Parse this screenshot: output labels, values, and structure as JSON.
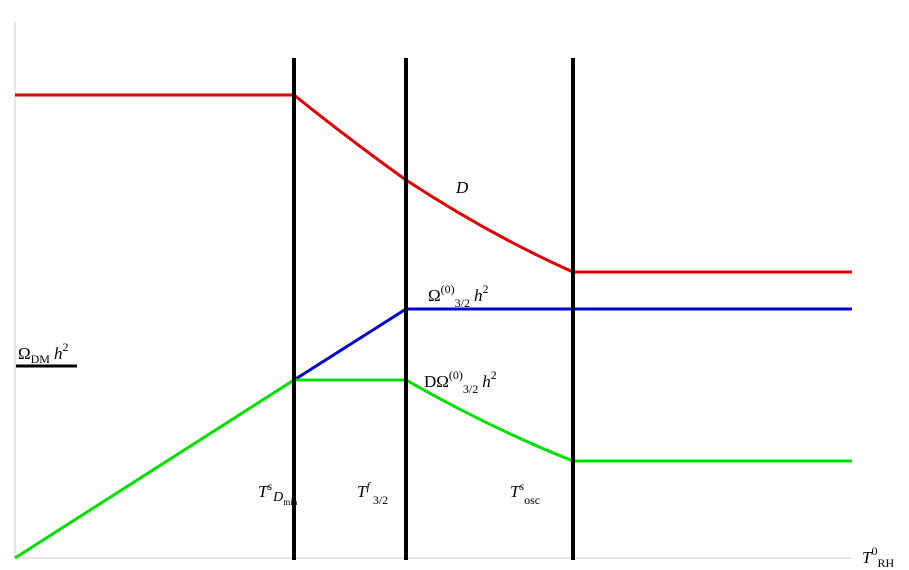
{
  "labels": {
    "y_axis": [
      "Ω",
      "DM",
      "h",
      "2"
    ],
    "curve_d": [
      "D"
    ],
    "omega_32": [
      "Ω",
      "(0)",
      "3/2",
      "h",
      "2"
    ],
    "d_omega_32": [
      "DΩ",
      "(0)",
      "3/2",
      "h",
      "2"
    ],
    "t_dmin": [
      "T",
      "s",
      "D",
      "min"
    ],
    "t_f32": [
      "T",
      "f",
      "3/2"
    ],
    "t_osc": [
      "T",
      "s",
      "osc"
    ],
    "t_rh": [
      "T",
      "0",
      "RH"
    ]
  }
}
